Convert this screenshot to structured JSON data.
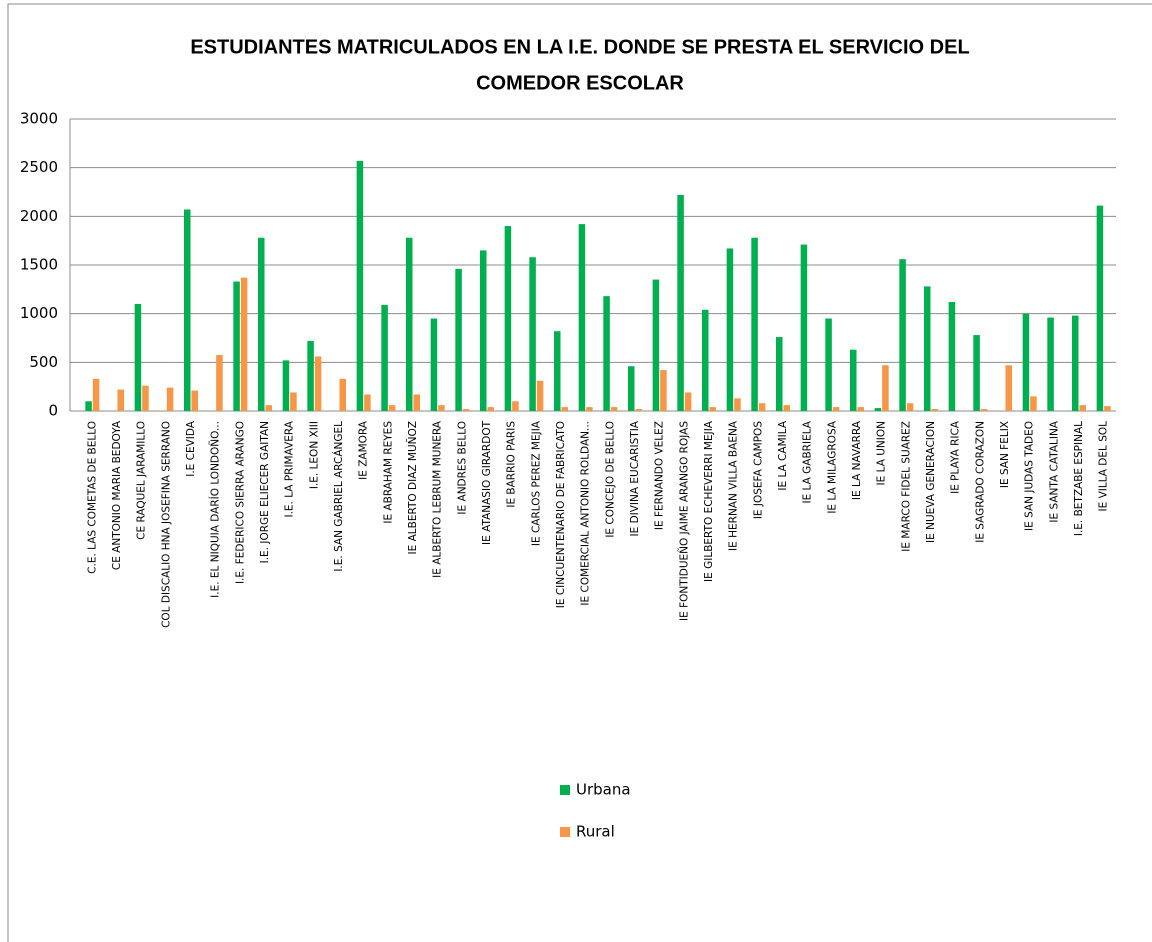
{
  "chart_data": {
    "type": "bar",
    "title": [
      "ESTUDIANTES MATRICULADOS EN LA I.E. DONDE SE PRESTA EL SERVICIO DEL",
      "COMEDOR ESCOLAR"
    ],
    "categories": [
      "C.E. LAS COMETAS DE BELLO",
      "CE ANTONIO MARIA BEDOYA",
      "CE RAQUEL JARAMILLO",
      "COL DISCALIO HNA JOSEFINA SERRANO",
      "I.E CEVIDA",
      "I.E. EL NIQUIA DARÍO LONDOÑO...",
      "I.E. FEDERICO SIERRA ARANGO",
      "I.E. JORGE ELIECER GAITAN",
      "I.E. LA PRIMAVERA",
      "I.E. LEON XIII",
      "I.E. SAN GABRIEL ARCÁNGEL",
      "IE ZAMORA",
      "IE ABRAHAM REYES",
      "IE ALBERTO DIAZ MUÑOZ",
      "IE ALBERTO LEBRUM MUNERA",
      "IE ANDRES BELLO",
      "IE ATANASIO GIRARDOT",
      "IE BARRIO PARIS",
      "IE CARLOS PEREZ MEJIA",
      "IE CINCUENTENARIO DE FABRICATO",
      "IE COMERCIAL ANTONIO ROLDAN...",
      "IE CONCEJO DE BELLO",
      "IE DIVINA EUCARISTIA",
      "IE FERNANDO VELEZ",
      "IE FONTIDUEÑO JAIME ARANGO ROJAS",
      "IE GILBERTO ECHEVERRI MEJIA",
      "IE HERNAN VILLA BAENA",
      "IE JOSEFA CAMPOS",
      "IE LA CAMILA",
      "IE LA GABRIELA",
      "IE LA MILAGROSA",
      "IE LA NAVARRA",
      "IE LA UNION",
      "IE MARCO FIDEL SUAREZ",
      "IE NUEVA GENERACION",
      "IE PLAYA RICA",
      "IE SAGRADO CORAZON",
      "IE SAN FELIX",
      "IE SAN JUDAS TADEO",
      "IE SANTA CATALINA",
      "I.E. BETZABE ESPINAL",
      "IE VILLA DEL SOL"
    ],
    "series": [
      {
        "name": "Urbana",
        "color": "#00b050",
        "values": [
          100,
          0,
          1100,
          0,
          2070,
          0,
          1330,
          1780,
          520,
          720,
          0,
          2570,
          1090,
          1780,
          950,
          1460,
          1650,
          1900,
          1580,
          820,
          1920,
          1180,
          460,
          1350,
          2220,
          1040,
          1670,
          1780,
          760,
          1710,
          950,
          630,
          30,
          1560,
          1280,
          1120,
          780,
          0,
          1000,
          960,
          980,
          2110
        ]
      },
      {
        "name": "Rural",
        "color": "#f79646",
        "values": [
          330,
          220,
          260,
          240,
          210,
          575,
          1370,
          60,
          190,
          560,
          330,
          170,
          60,
          170,
          60,
          20,
          40,
          100,
          310,
          40,
          40,
          40,
          20,
          420,
          190,
          40,
          130,
          80,
          60,
          0,
          40,
          40,
          470,
          80,
          20,
          0,
          20,
          470,
          150,
          0,
          60,
          50
        ]
      }
    ],
    "ylim": [
      0,
      3000
    ],
    "yticks": [
      0,
      500,
      1000,
      1500,
      2000,
      2500,
      3000
    ],
    "grid": true,
    "legend": "bottom"
  }
}
